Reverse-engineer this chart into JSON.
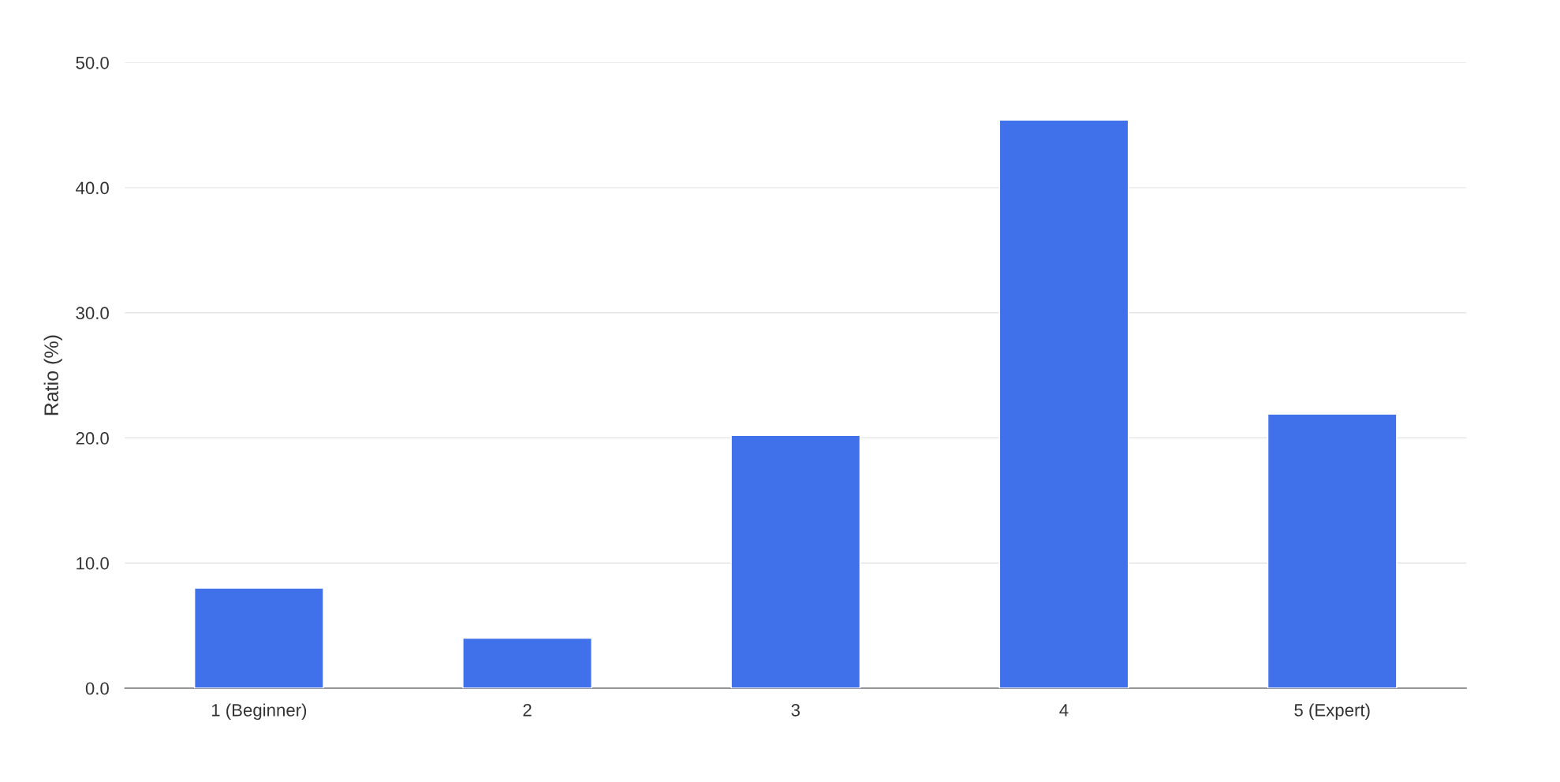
{
  "chart_data": {
    "type": "bar",
    "ylabel": "Ratio (%)",
    "categories": [
      "1 (Beginner)",
      "2",
      "3",
      "4",
      "5 (Expert)"
    ],
    "values": [
      8.0,
      4.0,
      20.2,
      45.4,
      21.9
    ],
    "color": "#4170eb",
    "ylim": [
      0,
      50
    ],
    "yticks": [
      {
        "value": 0,
        "label": "0.0"
      },
      {
        "value": 10,
        "label": "10.0"
      },
      {
        "value": 20,
        "label": "20.0"
      },
      {
        "value": 30,
        "label": "30.0"
      },
      {
        "value": 40,
        "label": "40.0"
      },
      {
        "value": 50,
        "label": "50.0"
      }
    ],
    "grid": "y",
    "legend": false
  }
}
